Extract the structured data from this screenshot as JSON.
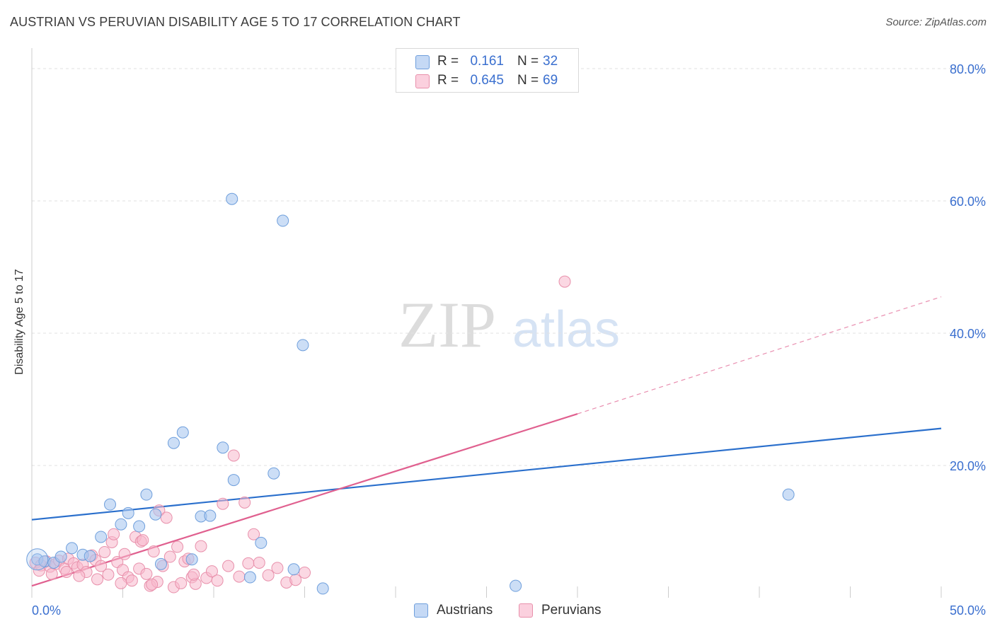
{
  "title": "AUSTRIAN VS PERUVIAN DISABILITY AGE 5 TO 17 CORRELATION CHART",
  "source": "Source: ZipAtlas.com",
  "watermark": {
    "zip": "ZIP",
    "atlas": "atlas"
  },
  "legend_top": [
    {
      "r_label": "R =",
      "r_value": "0.161",
      "n_label": "N =",
      "n_value": "32"
    },
    {
      "r_label": "R =",
      "r_value": "0.645",
      "n_label": "N =",
      "n_value": "69"
    }
  ],
  "legend_bottom": {
    "austrians": "Austrians",
    "peruvians": "Peruvians"
  },
  "colors": {
    "austrians_fill": "#aac8f0",
    "austrians_stroke": "#6f9fdc",
    "austrians_line": "#2a6fcc",
    "peruvians_fill": "#f7b8cc",
    "peruvians_stroke": "#e890ab",
    "peruvians_line": "#e0608f",
    "axis_label": "#3a6fcf",
    "grid": "#e2e2e2"
  },
  "chart_data": {
    "type": "scatter",
    "title": "AUSTRIAN VS PERUVIAN DISABILITY AGE 5 TO 17 CORRELATION CHART",
    "xlabel": "",
    "ylabel": "Disability Age 5 to 17",
    "xlim": [
      0,
      50
    ],
    "ylim": [
      0,
      80
    ],
    "x_tick_labels": [
      "0.0%",
      "50.0%"
    ],
    "y_ticks": [
      20,
      40,
      60,
      80
    ],
    "y_tick_labels": [
      "20.0%",
      "40.0%",
      "60.0%",
      "80.0%"
    ],
    "series": [
      {
        "name": "Austrians",
        "r": 0.161,
        "n": 32,
        "points": [
          [
            0.3,
            5.8
          ],
          [
            0.7,
            5.5
          ],
          [
            1.2,
            5.3
          ],
          [
            1.6,
            6.2
          ],
          [
            2.2,
            7.5
          ],
          [
            2.8,
            6.5
          ],
          [
            3.2,
            6.3
          ],
          [
            3.8,
            9.2
          ],
          [
            4.3,
            14.1
          ],
          [
            4.9,
            11.1
          ],
          [
            5.3,
            12.8
          ],
          [
            5.9,
            10.8
          ],
          [
            6.3,
            15.6
          ],
          [
            6.8,
            12.6
          ],
          [
            7.1,
            5.1
          ],
          [
            7.8,
            23.4
          ],
          [
            8.3,
            25.0
          ],
          [
            8.8,
            5.8
          ],
          [
            9.3,
            12.3
          ],
          [
            9.8,
            12.4
          ],
          [
            10.5,
            22.7
          ],
          [
            11.0,
            60.3
          ],
          [
            11.1,
            17.8
          ],
          [
            12.0,
            3.1
          ],
          [
            12.6,
            8.3
          ],
          [
            13.3,
            18.8
          ],
          [
            13.8,
            57.0
          ],
          [
            14.4,
            4.3
          ],
          [
            14.9,
            38.2
          ],
          [
            16.0,
            1.4
          ],
          [
            26.6,
            1.8
          ],
          [
            41.6,
            15.6
          ]
        ],
        "trend": {
          "x0": 0,
          "y0": 11.8,
          "x1": 50,
          "y1": 25.6
        }
      },
      {
        "name": "Peruvians",
        "r": 0.645,
        "n": 69,
        "points": [
          [
            0.2,
            5.3
          ],
          [
            0.5,
            4.9
          ],
          [
            0.8,
            5.5
          ],
          [
            1.0,
            4.7
          ],
          [
            1.3,
            5.1
          ],
          [
            1.5,
            5.6
          ],
          [
            1.8,
            4.4
          ],
          [
            2.0,
            5.9
          ],
          [
            2.3,
            5.2
          ],
          [
            2.5,
            4.6
          ],
          [
            2.8,
            5.0
          ],
          [
            3.0,
            3.9
          ],
          [
            3.3,
            6.4
          ],
          [
            3.5,
            5.7
          ],
          [
            3.8,
            4.8
          ],
          [
            4.0,
            6.9
          ],
          [
            4.2,
            3.5
          ],
          [
            4.4,
            8.4
          ],
          [
            4.5,
            9.6
          ],
          [
            4.7,
            5.4
          ],
          [
            5.0,
            4.2
          ],
          [
            5.1,
            6.6
          ],
          [
            5.3,
            3.1
          ],
          [
            5.5,
            2.6
          ],
          [
            5.7,
            9.2
          ],
          [
            5.9,
            4.4
          ],
          [
            6.0,
            8.5
          ],
          [
            6.1,
            8.7
          ],
          [
            6.3,
            3.6
          ],
          [
            6.5,
            1.8
          ],
          [
            6.7,
            7.0
          ],
          [
            6.9,
            2.4
          ],
          [
            7.0,
            13.2
          ],
          [
            7.2,
            4.8
          ],
          [
            7.4,
            12.1
          ],
          [
            7.6,
            6.2
          ],
          [
            7.8,
            1.6
          ],
          [
            8.0,
            7.7
          ],
          [
            8.2,
            2.2
          ],
          [
            8.4,
            5.5
          ],
          [
            8.6,
            5.9
          ],
          [
            8.8,
            3.1
          ],
          [
            9.0,
            2.1
          ],
          [
            9.3,
            7.8
          ],
          [
            9.6,
            3.0
          ],
          [
            9.9,
            4.0
          ],
          [
            10.2,
            2.6
          ],
          [
            10.5,
            14.2
          ],
          [
            10.8,
            4.8
          ],
          [
            11.1,
            21.5
          ],
          [
            11.4,
            3.2
          ],
          [
            11.7,
            14.4
          ],
          [
            11.9,
            5.2
          ],
          [
            12.2,
            9.6
          ],
          [
            12.5,
            5.3
          ],
          [
            13.0,
            3.4
          ],
          [
            13.5,
            4.5
          ],
          [
            14.0,
            2.3
          ],
          [
            14.5,
            2.7
          ],
          [
            15.0,
            3.8
          ],
          [
            29.3,
            47.8
          ],
          [
            0.4,
            4.1
          ],
          [
            1.1,
            3.6
          ],
          [
            1.9,
            3.9
          ],
          [
            2.6,
            3.3
          ],
          [
            3.6,
            2.8
          ],
          [
            4.9,
            2.2
          ],
          [
            6.6,
            2.0
          ],
          [
            8.9,
            3.5
          ]
        ],
        "trend": {
          "x0": 0,
          "y0": 1.8,
          "x1": 30,
          "y1": 27.8
        },
        "trend_dashed": {
          "x0": 30,
          "y0": 27.8,
          "x1": 50,
          "y1": 45.5
        }
      }
    ]
  }
}
